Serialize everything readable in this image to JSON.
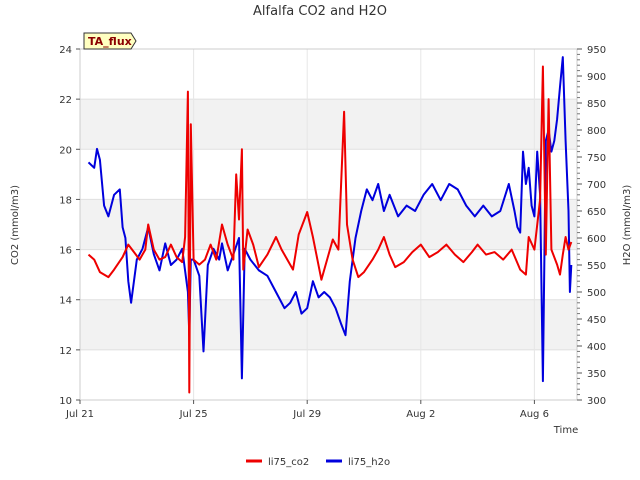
{
  "chart_data": {
    "type": "line",
    "title": "Alfalfa CO2 and H2O",
    "xlabel": "Time",
    "ylabel": "CO2 (mmol/m3)",
    "y2label": "H2O (mmol/m3)",
    "badge": "TA_flux",
    "xlim": [
      0,
      17.5
    ],
    "ylim": [
      10,
      24
    ],
    "y2lim": [
      300,
      950
    ],
    "x_ticks": [
      {
        "value": 0,
        "label": "Jul 21"
      },
      {
        "value": 4,
        "label": "Jul 25"
      },
      {
        "value": 8,
        "label": "Jul 29"
      },
      {
        "value": 12,
        "label": "Aug 2"
      },
      {
        "value": 16,
        "label": "Aug 6"
      }
    ],
    "y_ticks": [
      10,
      12,
      14,
      16,
      18,
      20,
      22,
      24
    ],
    "y2_ticks": [
      300,
      350,
      400,
      450,
      500,
      550,
      600,
      650,
      700,
      750,
      800,
      850,
      900,
      950
    ],
    "grid_bands": "alternating",
    "legend_position": "bottom-center",
    "series": [
      {
        "name": "li75_co2",
        "axis": "left",
        "color": "#ee0000",
        "points": [
          [
            0.3,
            15.8
          ],
          [
            0.5,
            15.6
          ],
          [
            0.7,
            15.1
          ],
          [
            1.0,
            14.9
          ],
          [
            1.2,
            15.2
          ],
          [
            1.5,
            15.7
          ],
          [
            1.7,
            16.2
          ],
          [
            1.9,
            15.9
          ],
          [
            2.1,
            15.6
          ],
          [
            2.3,
            16.0
          ],
          [
            2.4,
            17.0
          ],
          [
            2.6,
            16.0
          ],
          [
            2.8,
            15.6
          ],
          [
            3.0,
            15.7
          ],
          [
            3.2,
            16.2
          ],
          [
            3.4,
            15.7
          ],
          [
            3.6,
            15.5
          ],
          [
            3.7,
            16.5
          ],
          [
            3.8,
            22.3
          ],
          [
            3.85,
            10.3
          ],
          [
            3.9,
            21.0
          ],
          [
            4.0,
            15.6
          ],
          [
            4.2,
            15.4
          ],
          [
            4.4,
            15.6
          ],
          [
            4.6,
            16.2
          ],
          [
            4.8,
            15.6
          ],
          [
            5.0,
            17.0
          ],
          [
            5.2,
            16.2
          ],
          [
            5.4,
            15.6
          ],
          [
            5.5,
            19.0
          ],
          [
            5.6,
            17.2
          ],
          [
            5.7,
            20.0
          ],
          [
            5.75,
            15.2
          ],
          [
            5.9,
            16.8
          ],
          [
            6.1,
            16.2
          ],
          [
            6.3,
            15.3
          ],
          [
            6.6,
            15.8
          ],
          [
            6.9,
            16.5
          ],
          [
            7.1,
            16.0
          ],
          [
            7.3,
            15.6
          ],
          [
            7.5,
            15.2
          ],
          [
            7.7,
            16.6
          ],
          [
            7.9,
            17.2
          ],
          [
            8.0,
            17.5
          ],
          [
            8.2,
            16.5
          ],
          [
            8.5,
            14.8
          ],
          [
            8.7,
            15.6
          ],
          [
            8.9,
            16.4
          ],
          [
            9.1,
            16.0
          ],
          [
            9.3,
            21.5
          ],
          [
            9.4,
            17.0
          ],
          [
            9.6,
            15.6
          ],
          [
            9.8,
            14.9
          ],
          [
            10.0,
            15.1
          ],
          [
            10.3,
            15.6
          ],
          [
            10.5,
            16.0
          ],
          [
            10.7,
            16.5
          ],
          [
            10.9,
            15.8
          ],
          [
            11.1,
            15.3
          ],
          [
            11.4,
            15.5
          ],
          [
            11.7,
            15.9
          ],
          [
            12.0,
            16.2
          ],
          [
            12.3,
            15.7
          ],
          [
            12.6,
            15.9
          ],
          [
            12.9,
            16.2
          ],
          [
            13.2,
            15.8
          ],
          [
            13.5,
            15.5
          ],
          [
            13.8,
            15.9
          ],
          [
            14.0,
            16.2
          ],
          [
            14.3,
            15.8
          ],
          [
            14.6,
            15.9
          ],
          [
            14.9,
            15.6
          ],
          [
            15.2,
            16.0
          ],
          [
            15.5,
            15.2
          ],
          [
            15.7,
            15.0
          ],
          [
            15.8,
            16.5
          ],
          [
            16.0,
            16.0
          ],
          [
            16.2,
            18.0
          ],
          [
            16.3,
            23.3
          ],
          [
            16.4,
            15.8
          ],
          [
            16.5,
            22.0
          ],
          [
            16.6,
            16.0
          ],
          [
            16.8,
            15.4
          ],
          [
            16.9,
            15.0
          ],
          [
            17.0,
            15.8
          ],
          [
            17.1,
            16.5
          ],
          [
            17.2,
            16.0
          ],
          [
            17.3,
            16.3
          ]
        ]
      },
      {
        "name": "li75_h2o",
        "axis": "right",
        "color": "#0000dd",
        "points": [
          [
            0.3,
            740
          ],
          [
            0.5,
            730
          ],
          [
            0.6,
            765
          ],
          [
            0.7,
            745
          ],
          [
            0.85,
            660
          ],
          [
            1.0,
            640
          ],
          [
            1.2,
            680
          ],
          [
            1.4,
            690
          ],
          [
            1.5,
            620
          ],
          [
            1.6,
            600
          ],
          [
            1.7,
            520
          ],
          [
            1.8,
            480
          ],
          [
            2.0,
            560
          ],
          [
            2.2,
            580
          ],
          [
            2.4,
            620
          ],
          [
            2.6,
            570
          ],
          [
            2.8,
            540
          ],
          [
            3.0,
            590
          ],
          [
            3.2,
            550
          ],
          [
            3.4,
            560
          ],
          [
            3.6,
            580
          ],
          [
            3.8,
            500
          ],
          [
            3.85,
            420
          ],
          [
            3.9,
            560
          ],
          [
            4.0,
            560
          ],
          [
            4.2,
            530
          ],
          [
            4.35,
            390
          ],
          [
            4.5,
            550
          ],
          [
            4.7,
            580
          ],
          [
            4.9,
            560
          ],
          [
            5.0,
            590
          ],
          [
            5.2,
            540
          ],
          [
            5.4,
            570
          ],
          [
            5.6,
            600
          ],
          [
            5.7,
            340
          ],
          [
            5.8,
            580
          ],
          [
            6.0,
            560
          ],
          [
            6.3,
            540
          ],
          [
            6.6,
            530
          ],
          [
            6.8,
            510
          ],
          [
            7.0,
            490
          ],
          [
            7.2,
            470
          ],
          [
            7.4,
            480
          ],
          [
            7.6,
            500
          ],
          [
            7.8,
            460
          ],
          [
            8.0,
            470
          ],
          [
            8.2,
            520
          ],
          [
            8.4,
            490
          ],
          [
            8.6,
            500
          ],
          [
            8.8,
            490
          ],
          [
            9.0,
            470
          ],
          [
            9.2,
            440
          ],
          [
            9.35,
            420
          ],
          [
            9.5,
            520
          ],
          [
            9.7,
            600
          ],
          [
            9.9,
            650
          ],
          [
            10.1,
            690
          ],
          [
            10.3,
            670
          ],
          [
            10.5,
            700
          ],
          [
            10.7,
            650
          ],
          [
            10.9,
            680
          ],
          [
            11.2,
            640
          ],
          [
            11.5,
            660
          ],
          [
            11.8,
            650
          ],
          [
            12.1,
            680
          ],
          [
            12.4,
            700
          ],
          [
            12.7,
            670
          ],
          [
            13.0,
            700
          ],
          [
            13.3,
            690
          ],
          [
            13.6,
            660
          ],
          [
            13.9,
            640
          ],
          [
            14.2,
            660
          ],
          [
            14.5,
            640
          ],
          [
            14.8,
            650
          ],
          [
            15.1,
            700
          ],
          [
            15.3,
            650
          ],
          [
            15.4,
            620
          ],
          [
            15.5,
            610
          ],
          [
            15.6,
            760
          ],
          [
            15.7,
            700
          ],
          [
            15.8,
            730
          ],
          [
            15.9,
            660
          ],
          [
            16.0,
            640
          ],
          [
            16.1,
            760
          ],
          [
            16.2,
            680
          ],
          [
            16.3,
            335
          ],
          [
            16.4,
            780
          ],
          [
            16.5,
            800
          ],
          [
            16.6,
            760
          ],
          [
            16.7,
            780
          ],
          [
            16.8,
            820
          ],
          [
            16.9,
            880
          ],
          [
            17.0,
            935
          ],
          [
            17.1,
            780
          ],
          [
            17.2,
            650
          ],
          [
            17.25,
            500
          ],
          [
            17.3,
            550
          ]
        ]
      }
    ]
  }
}
